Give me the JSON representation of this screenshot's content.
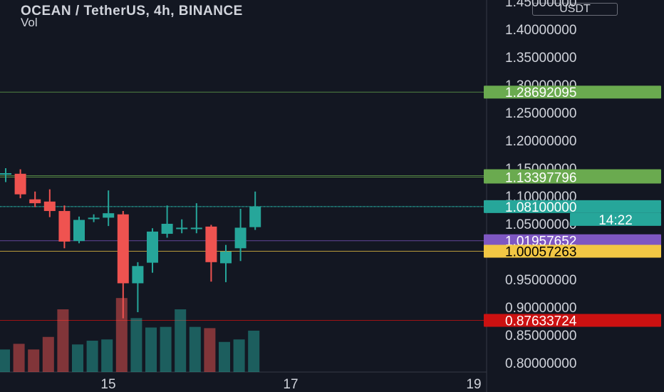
{
  "header": {
    "title": "OCEAN / TetherUS, 4h, BINANCE",
    "subtitle": "Vol",
    "currency": "USDT"
  },
  "colors": {
    "up": "#26a69a",
    "down": "#ef5350",
    "bg": "#131722",
    "text": "#d1d4dc"
  },
  "chart_data": {
    "type": "candlestick",
    "xlabel": "",
    "ylabel": "",
    "x_ticks": [
      "15",
      "17",
      "19"
    ],
    "ylim": [
      0.78,
      1.45
    ],
    "y_ticks": [
      "1.45000000",
      "1.40000000",
      "1.35000000",
      "1.30000000",
      "1.25000000",
      "1.20000000",
      "1.15000000",
      "1.10000000",
      "1.05000000",
      "0.95000000",
      "0.90000000",
      "0.85000000",
      "0.80000000"
    ],
    "candles": [
      {
        "o": 1.141,
        "h": 1.15,
        "l": 1.125,
        "c": 1.141
      },
      {
        "o": 1.14,
        "h": 1.148,
        "l": 1.096,
        "c": 1.103
      },
      {
        "o": 1.094,
        "h": 1.108,
        "l": 1.08,
        "c": 1.087
      },
      {
        "o": 1.09,
        "h": 1.112,
        "l": 1.062,
        "c": 1.073
      },
      {
        "o": 1.073,
        "h": 1.083,
        "l": 1.006,
        "c": 1.018
      },
      {
        "o": 1.019,
        "h": 1.063,
        "l": 1.015,
        "c": 1.057
      },
      {
        "o": 1.061,
        "h": 1.067,
        "l": 1.053,
        "c": 1.061
      },
      {
        "o": 1.061,
        "h": 1.11,
        "l": 1.046,
        "c": 1.069
      },
      {
        "o": 1.067,
        "h": 1.073,
        "l": 0.88,
        "c": 0.943
      },
      {
        "o": 0.943,
        "h": 0.981,
        "l": 0.891,
        "c": 0.974
      },
      {
        "o": 0.98,
        "h": 1.042,
        "l": 0.962,
        "c": 1.036
      },
      {
        "o": 1.032,
        "h": 1.083,
        "l": 1.025,
        "c": 1.05
      },
      {
        "o": 1.042,
        "h": 1.058,
        "l": 1.033,
        "c": 1.043
      },
      {
        "o": 1.043,
        "h": 1.087,
        "l": 1.033,
        "c": 1.043
      },
      {
        "o": 1.045,
        "h": 1.048,
        "l": 0.946,
        "c": 0.981
      },
      {
        "o": 0.979,
        "h": 1.012,
        "l": 0.945,
        "c": 1.0
      },
      {
        "o": 1.006,
        "h": 1.077,
        "l": 0.983,
        "c": 1.043
      },
      {
        "o": 1.044,
        "h": 1.108,
        "l": 1.039,
        "c": 1.081
      }
    ],
    "volume": [
      0.36,
      0.45,
      0.36,
      0.56,
      1.0,
      0.44,
      0.5,
      0.52,
      1.18,
      0.86,
      0.71,
      0.72,
      1.0,
      0.72,
      0.7,
      0.48,
      0.52,
      0.66
    ],
    "price_levels": [
      {
        "label": "1.28692095",
        "value": 1.28692095,
        "color": "#6aaa4f",
        "text_color": "#ffffff"
      },
      {
        "label": "1.13655720",
        "value": 1.1365572,
        "color": "#6aaa4f",
        "text_color": "#ffffff"
      },
      {
        "label": "1.13397796",
        "value": 1.13397796,
        "color": "#6aaa4f",
        "text_color": "#ffffff"
      },
      {
        "label": "1.08100000",
        "value": 1.081,
        "color": "#26a69a",
        "text_color": "#ffffff"
      },
      {
        "label": "1.01957652",
        "value": 1.01957652,
        "color": "#7e57c2",
        "text_color": "#ffffff"
      },
      {
        "label": "1.00057263",
        "value": 1.00057263,
        "color": "#f2c744",
        "text_color": "#000000"
      },
      {
        "label": "0.87633724",
        "value": 0.87633724,
        "color": "#cc1111",
        "text_color": "#ffffff"
      }
    ],
    "countdown": "14:22"
  }
}
